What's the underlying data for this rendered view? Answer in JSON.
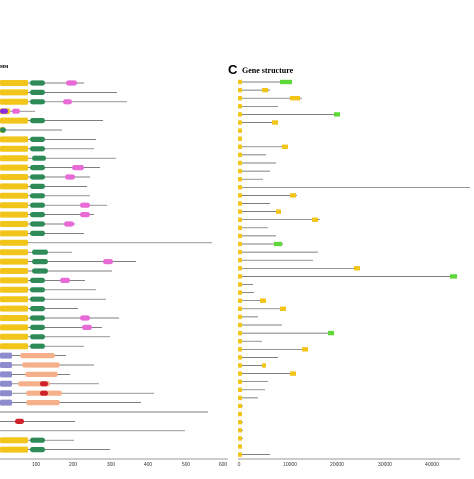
{
  "panel_b": {
    "header_fragment": "мм",
    "axis_ticks": [
      "0",
      "100",
      "200",
      "300",
      "400",
      "500",
      "600"
    ]
  },
  "panel_c": {
    "letter": "C",
    "title": "Gene structure",
    "axis_ticks": [
      "0",
      "10000",
      "20000",
      "30000",
      "40000"
    ]
  },
  "colors": {
    "yellow_domain": "#f2c51a",
    "green_domain": "#2e8b57",
    "magenta_domain": "#e86ad6",
    "purple_domain": "#8a2be2",
    "peach_domain": "#f5b08a",
    "lavender_domain": "#8c8ccf",
    "red_domain": "#d0202a",
    "backbone": "#555555",
    "exon": "#f0c419",
    "utr": "#5fd93a"
  }
}
